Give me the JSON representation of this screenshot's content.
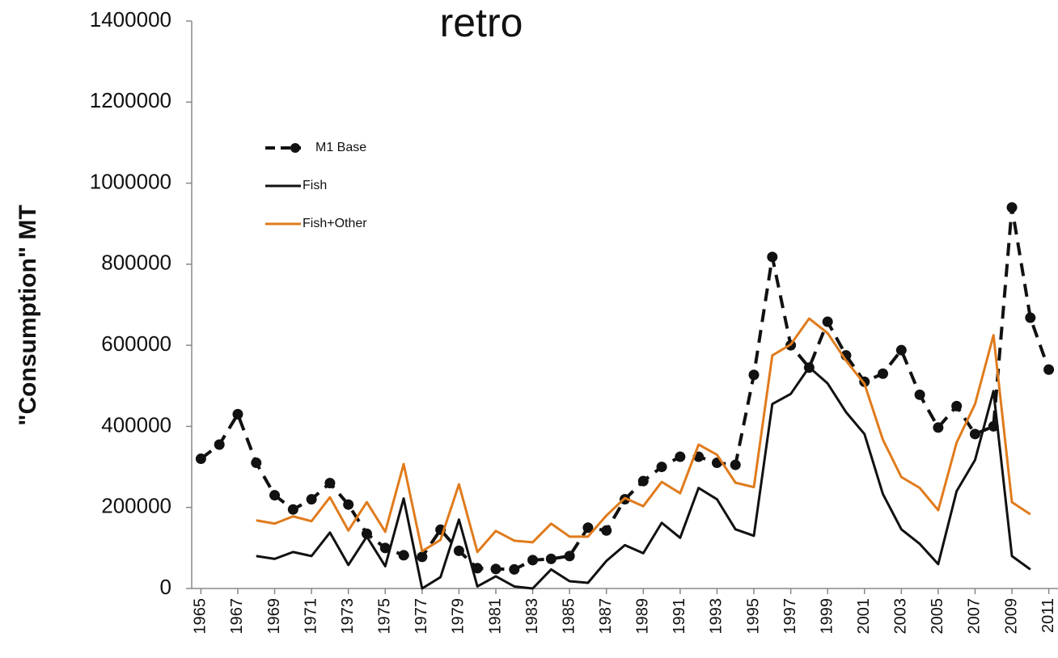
{
  "chart_data": {
    "type": "line",
    "title": "retro",
    "y_label": "\"Consumption\" MT",
    "x": [
      1965,
      1966,
      1967,
      1968,
      1969,
      1970,
      1971,
      1972,
      1973,
      1974,
      1975,
      1976,
      1977,
      1978,
      1979,
      1980,
      1981,
      1982,
      1983,
      1984,
      1985,
      1986,
      1987,
      1988,
      1989,
      1990,
      1991,
      1992,
      1993,
      1994,
      1995,
      1996,
      1997,
      1998,
      1999,
      2000,
      2001,
      2002,
      2003,
      2004,
      2005,
      2006,
      2007,
      2008,
      2009,
      2010,
      2011
    ],
    "xlim": [
      1964.5,
      2011.5
    ],
    "xticks": [
      1965,
      1967,
      1969,
      1971,
      1973,
      1975,
      1977,
      1979,
      1981,
      1983,
      1985,
      1987,
      1989,
      1991,
      1993,
      1995,
      1997,
      1999,
      2001,
      2003,
      2005,
      2007,
      2009,
      2011
    ],
    "ylim": [
      0,
      1400000
    ],
    "yticks": [
      0,
      200000,
      400000,
      600000,
      800000,
      1000000,
      1200000,
      1400000
    ],
    "legend": "upper left",
    "series": [
      {
        "name": "M1 Base",
        "color": "#111111",
        "dashed": true,
        "markers": true,
        "values": [
          320000,
          355000,
          430000,
          310000,
          230000,
          195000,
          220000,
          260000,
          207000,
          135000,
          100000,
          82000,
          78000,
          145000,
          93000,
          50000,
          48000,
          47000,
          70000,
          73000,
          80000,
          150000,
          143000,
          220000,
          265000,
          300000,
          325000,
          325000,
          310000,
          305000,
          527000,
          818000,
          600000,
          545000,
          658000,
          575000,
          510000,
          530000,
          588000,
          478000,
          397000,
          450000,
          381000,
          400000,
          940000,
          668000,
          540000
        ]
      },
      {
        "name": "Fish",
        "color": "#111111",
        "dashed": false,
        "markers": false,
        "values": [
          null,
          null,
          null,
          80000,
          73000,
          90000,
          80000,
          138000,
          58000,
          128000,
          55000,
          222000,
          0,
          28000,
          170000,
          5000,
          30000,
          5000,
          0,
          47000,
          18000,
          14000,
          68000,
          107000,
          87000,
          162000,
          125000,
          248000,
          220000,
          146000,
          130000,
          455000,
          480000,
          546000,
          506000,
          435000,
          381000,
          233000,
          146000,
          110000,
          60000,
          240000,
          317000,
          487000,
          80000,
          47000,
          null
        ]
      },
      {
        "name": "Fish+Other",
        "color": "#e07b1c",
        "dashed": false,
        "markers": false,
        "values": [
          null,
          null,
          null,
          168000,
          160000,
          178000,
          166000,
          225000,
          143000,
          213000,
          140000,
          307000,
          92000,
          120000,
          257000,
          90000,
          142000,
          118000,
          114000,
          160000,
          128000,
          128000,
          180000,
          223000,
          203000,
          263000,
          235000,
          355000,
          330000,
          261000,
          250000,
          575000,
          602000,
          666000,
          630000,
          562000,
          505000,
          367000,
          275000,
          248000,
          193000,
          360000,
          455000,
          625000,
          213000,
          183000,
          null
        ]
      }
    ]
  }
}
